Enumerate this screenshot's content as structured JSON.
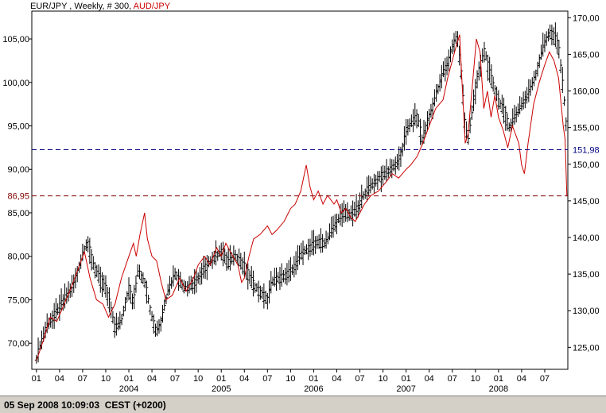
{
  "status_bar": {
    "text": "05 Sep 2008 10:09:03  CEST (+0200)"
  },
  "chart_data": {
    "type": "line",
    "title_parts": [
      {
        "text": "EUR/JPY , Weekly, # 300, ",
        "color": "#000000"
      },
      {
        "text": "AUD/JPY",
        "color": "#cc0000"
      }
    ],
    "x_tick_labels": [
      "01",
      "04",
      "07",
      "10",
      "01",
      "04",
      "07",
      "10",
      "01",
      "04",
      "07",
      "10",
      "01",
      "04",
      "07",
      "10",
      "01",
      "04",
      "07",
      "10",
      "01",
      "04",
      "07"
    ],
    "year_labels": [
      {
        "label": "2004",
        "x": 2004.0
      },
      {
        "label": "2005",
        "x": 2005.0
      },
      {
        "label": "2006",
        "x": 2006.0
      },
      {
        "label": "2007",
        "x": 2007.0
      },
      {
        "label": "2008",
        "x": 2008.0
      }
    ],
    "xlim": [
      2002.95,
      2008.75
    ],
    "x_tick_start": 2003.0,
    "x_tick_step": 0.25,
    "left_axis": {
      "series": "AUD/JPY",
      "ylim": [
        67.0,
        108.2
      ],
      "ticks": [
        70,
        75,
        80,
        85,
        90,
        95,
        100,
        105
      ],
      "tick_labels": [
        "70,00",
        "75,00",
        "80,00",
        "85,00",
        "90,00",
        "95,00",
        "100,00",
        "105,00"
      ],
      "label_color": "#000000"
    },
    "right_axis": {
      "series": "EUR/JPY",
      "ylim": [
        122.0,
        170.9
      ],
      "ticks": [
        125,
        130,
        135,
        140,
        145,
        150,
        155,
        160,
        165,
        170
      ],
      "tick_labels": [
        "125,00",
        "130,00",
        "135,00",
        "140,00",
        "145,00",
        "150,00",
        "155,00",
        "160,00",
        "165,00",
        "170,00"
      ],
      "label_color": "#000000"
    },
    "reference_lines": [
      {
        "name": "EUR/JPY last",
        "axis": "right",
        "value": 151.98,
        "label": "151,98",
        "color": "#000080"
      },
      {
        "name": "AUD/JPY last",
        "axis": "left",
        "value": 86.95,
        "label": "86,95",
        "color": "#800000"
      }
    ],
    "series": [
      {
        "name": "EUR/JPY",
        "style": "ohlc-bars",
        "color": "#000000",
        "axis": "right",
        "points": [
          [
            2003.0,
            123.5
          ],
          [
            2003.1,
            127.5
          ],
          [
            2003.2,
            129.5
          ],
          [
            2003.3,
            131.5
          ],
          [
            2003.4,
            133.5
          ],
          [
            2003.5,
            137.5
          ],
          [
            2003.55,
            139.5
          ],
          [
            2003.62,
            136.0
          ],
          [
            2003.7,
            134.0
          ],
          [
            2003.75,
            133.0
          ],
          [
            2003.8,
            130.5
          ],
          [
            2003.85,
            127.5
          ],
          [
            2003.92,
            128.5
          ],
          [
            2004.0,
            133.0
          ],
          [
            2004.05,
            131.0
          ],
          [
            2004.1,
            135.5
          ],
          [
            2004.18,
            133.5
          ],
          [
            2004.25,
            129.0
          ],
          [
            2004.3,
            127.0
          ],
          [
            2004.35,
            128.5
          ],
          [
            2004.42,
            132.5
          ],
          [
            2004.5,
            135.0
          ],
          [
            2004.6,
            133.0
          ],
          [
            2004.7,
            133.5
          ],
          [
            2004.8,
            135.5
          ],
          [
            2004.9,
            137.0
          ],
          [
            2005.0,
            138.0
          ],
          [
            2005.08,
            136.5
          ],
          [
            2005.15,
            137.5
          ],
          [
            2005.25,
            136.0
          ],
          [
            2005.35,
            133.5
          ],
          [
            2005.42,
            132.5
          ],
          [
            2005.5,
            131.5
          ],
          [
            2005.55,
            134.0
          ],
          [
            2005.65,
            134.5
          ],
          [
            2005.72,
            135.0
          ],
          [
            2005.8,
            136.0
          ],
          [
            2005.85,
            137.5
          ],
          [
            2005.95,
            138.5
          ],
          [
            2006.0,
            139.0
          ],
          [
            2006.05,
            139.5
          ],
          [
            2006.12,
            139.0
          ],
          [
            2006.2,
            141.0
          ],
          [
            2006.25,
            142.0
          ],
          [
            2006.32,
            143.5
          ],
          [
            2006.4,
            143.0
          ],
          [
            2006.48,
            144.0
          ],
          [
            2006.55,
            146.0
          ],
          [
            2006.62,
            147.0
          ],
          [
            2006.7,
            148.0
          ],
          [
            2006.8,
            149.0
          ],
          [
            2006.9,
            150.0
          ],
          [
            2006.95,
            151.5
          ],
          [
            2007.0,
            154.5
          ],
          [
            2007.05,
            155.5
          ],
          [
            2007.12,
            156.5
          ],
          [
            2007.18,
            153.0
          ],
          [
            2007.22,
            155.5
          ],
          [
            2007.28,
            157.5
          ],
          [
            2007.35,
            160.5
          ],
          [
            2007.4,
            162.5
          ],
          [
            2007.45,
            163.5
          ],
          [
            2007.5,
            166.0
          ],
          [
            2007.55,
            167.5
          ],
          [
            2007.6,
            162.0
          ],
          [
            2007.63,
            156.0
          ],
          [
            2007.67,
            153.0
          ],
          [
            2007.72,
            157.5
          ],
          [
            2007.78,
            162.5
          ],
          [
            2007.85,
            165.5
          ],
          [
            2007.9,
            162.5
          ],
          [
            2007.95,
            160.5
          ],
          [
            2008.0,
            158.5
          ],
          [
            2008.05,
            157.5
          ],
          [
            2008.12,
            155.0
          ],
          [
            2008.18,
            156.5
          ],
          [
            2008.25,
            158.0
          ],
          [
            2008.32,
            159.5
          ],
          [
            2008.4,
            162.0
          ],
          [
            2008.45,
            164.5
          ],
          [
            2008.5,
            166.5
          ],
          [
            2008.55,
            168.0
          ],
          [
            2008.6,
            167.5
          ],
          [
            2008.65,
            166.0
          ],
          [
            2008.7,
            160.0
          ],
          [
            2008.72,
            157.5
          ],
          [
            2008.74,
            154.0
          ]
        ]
      },
      {
        "name": "AUD/JPY",
        "style": "line",
        "color": "#cc0000",
        "axis": "left",
        "points": [
          [
            2003.0,
            68.0
          ],
          [
            2003.08,
            70.5
          ],
          [
            2003.15,
            73.0
          ],
          [
            2003.22,
            72.5
          ],
          [
            2003.3,
            74.5
          ],
          [
            2003.38,
            76.5
          ],
          [
            2003.45,
            78.5
          ],
          [
            2003.52,
            80.5
          ],
          [
            2003.58,
            77.5
          ],
          [
            2003.65,
            75.0
          ],
          [
            2003.72,
            74.5
          ],
          [
            2003.78,
            73.0
          ],
          [
            2003.85,
            74.5
          ],
          [
            2003.92,
            77.5
          ],
          [
            2004.0,
            80.0
          ],
          [
            2004.05,
            81.5
          ],
          [
            2004.08,
            80.0
          ],
          [
            2004.12,
            82.5
          ],
          [
            2004.17,
            85.0
          ],
          [
            2004.2,
            82.0
          ],
          [
            2004.25,
            80.0
          ],
          [
            2004.3,
            79.5
          ],
          [
            2004.35,
            77.0
          ],
          [
            2004.4,
            75.0
          ],
          [
            2004.47,
            75.5
          ],
          [
            2004.55,
            77.5
          ],
          [
            2004.62,
            76.0
          ],
          [
            2004.7,
            77.5
          ],
          [
            2004.75,
            79.0
          ],
          [
            2004.82,
            80.0
          ],
          [
            2004.88,
            79.0
          ],
          [
            2004.95,
            81.0
          ],
          [
            2005.0,
            80.0
          ],
          [
            2005.05,
            81.5
          ],
          [
            2005.1,
            80.5
          ],
          [
            2005.18,
            79.0
          ],
          [
            2005.22,
            77.0
          ],
          [
            2005.25,
            77.5
          ],
          [
            2005.3,
            80.0
          ],
          [
            2005.35,
            82.0
          ],
          [
            2005.42,
            82.5
          ],
          [
            2005.5,
            83.5
          ],
          [
            2005.55,
            82.5
          ],
          [
            2005.6,
            83.0
          ],
          [
            2005.68,
            84.0
          ],
          [
            2005.75,
            85.5
          ],
          [
            2005.8,
            86.0
          ],
          [
            2005.86,
            87.5
          ],
          [
            2005.92,
            90.5
          ],
          [
            2005.96,
            88.0
          ],
          [
            2006.0,
            86.5
          ],
          [
            2006.05,
            87.5
          ],
          [
            2006.1,
            86.0
          ],
          [
            2006.15,
            87.0
          ],
          [
            2006.22,
            86.0
          ],
          [
            2006.25,
            86.5
          ],
          [
            2006.3,
            85.0
          ],
          [
            2006.35,
            85.5
          ],
          [
            2006.4,
            84.5
          ],
          [
            2006.45,
            84.0
          ],
          [
            2006.5,
            85.0
          ],
          [
            2006.55,
            86.0
          ],
          [
            2006.62,
            87.0
          ],
          [
            2006.7,
            87.5
          ],
          [
            2006.78,
            88.5
          ],
          [
            2006.85,
            89.5
          ],
          [
            2006.92,
            89.0
          ],
          [
            2007.0,
            90.0
          ],
          [
            2007.05,
            90.5
          ],
          [
            2007.12,
            91.5
          ],
          [
            2007.18,
            93.0
          ],
          [
            2007.25,
            95.0
          ],
          [
            2007.32,
            97.0
          ],
          [
            2007.4,
            98.0
          ],
          [
            2007.45,
            100.5
          ],
          [
            2007.5,
            102.5
          ],
          [
            2007.55,
            104.5
          ],
          [
            2007.58,
            105.5
          ],
          [
            2007.6,
            101.0
          ],
          [
            2007.64,
            93.0
          ],
          [
            2007.67,
            94.0
          ],
          [
            2007.72,
            100.0
          ],
          [
            2007.76,
            105.0
          ],
          [
            2007.8,
            103.5
          ],
          [
            2007.84,
            97.0
          ],
          [
            2007.88,
            99.0
          ],
          [
            2007.92,
            96.0
          ],
          [
            2007.96,
            98.5
          ],
          [
            2008.0,
            96.0
          ],
          [
            2008.05,
            94.5
          ],
          [
            2008.1,
            92.5
          ],
          [
            2008.15,
            95.0
          ],
          [
            2008.22,
            93.0
          ],
          [
            2008.25,
            90.5
          ],
          [
            2008.28,
            89.5
          ],
          [
            2008.32,
            93.0
          ],
          [
            2008.38,
            97.5
          ],
          [
            2008.44,
            100.0
          ],
          [
            2008.5,
            102.0
          ],
          [
            2008.55,
            103.5
          ],
          [
            2008.6,
            102.5
          ],
          [
            2008.65,
            100.5
          ],
          [
            2008.7,
            95.0
          ],
          [
            2008.72,
            93.5
          ],
          [
            2008.74,
            86.95
          ]
        ]
      }
    ]
  }
}
